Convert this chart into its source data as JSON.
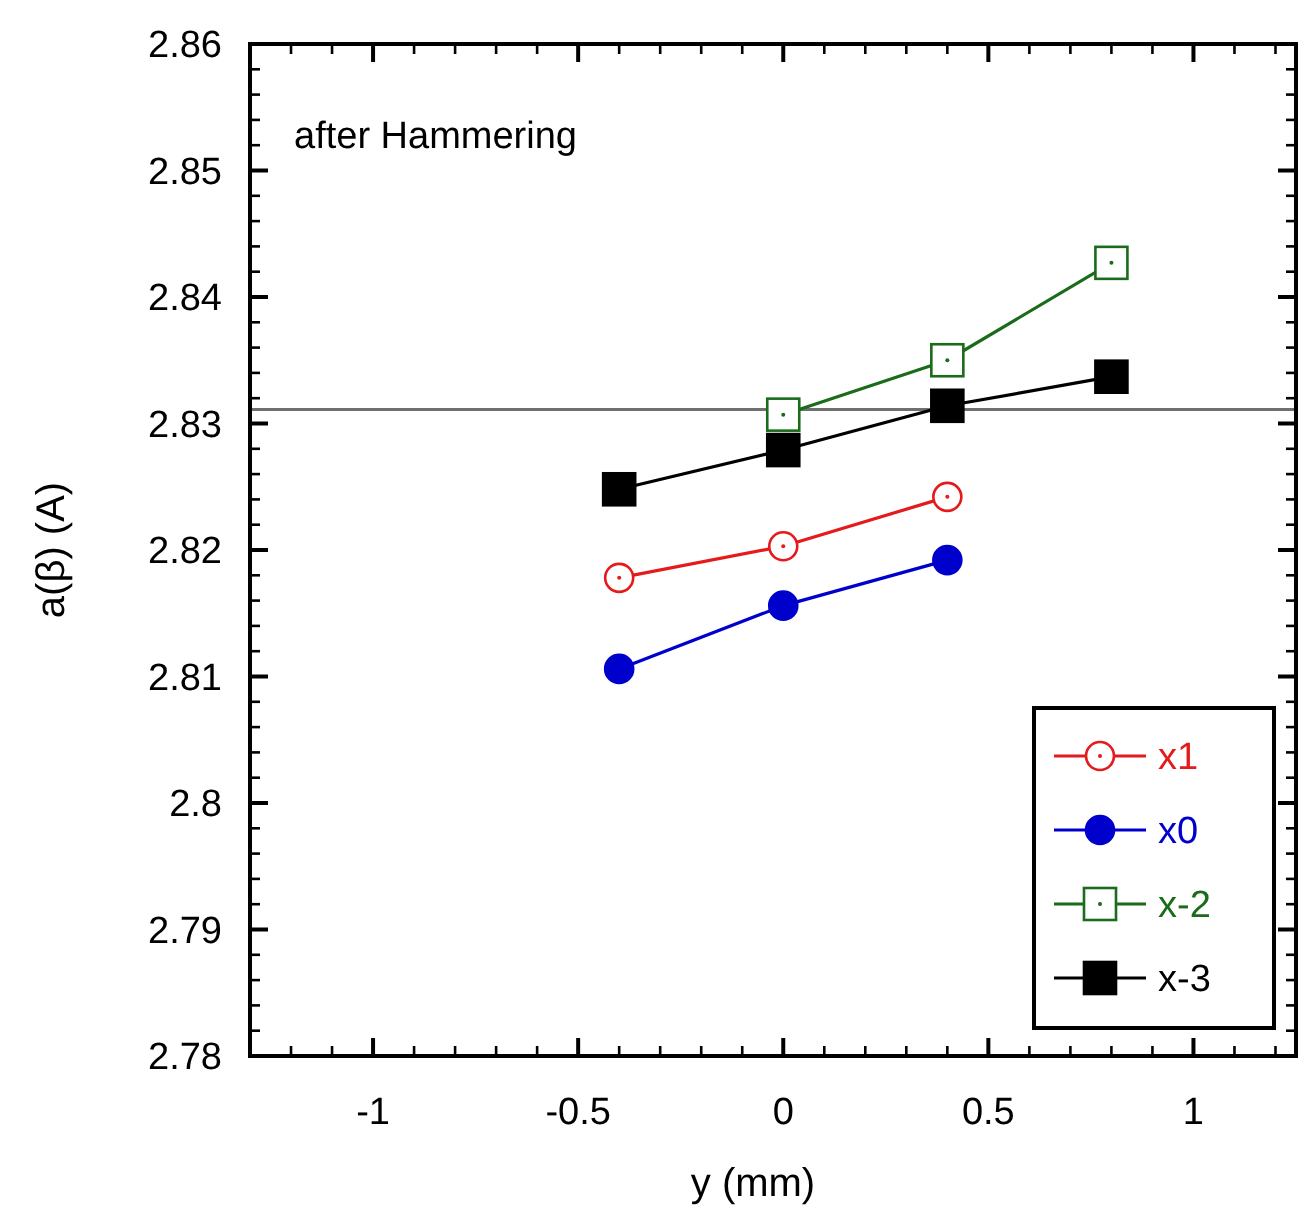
{
  "chart_data": {
    "type": "line",
    "xlabel": "y (mm)",
    "ylabel": "a(β) (A)",
    "annotations": [
      "after Hammering"
    ],
    "xlim": [
      -1.3,
      1.25
    ],
    "ylim": [
      2.78,
      2.86
    ],
    "xticks": [
      {
        "value": -1.2,
        "label": null
      },
      {
        "value": -1.1,
        "label": null
      },
      -1,
      {
        "value": -0.9,
        "label": null
      },
      {
        "value": -0.8,
        "label": null
      },
      {
        "value": -0.7,
        "label": null
      },
      {
        "value": -0.6,
        "label": null
      },
      -0.5,
      {
        "value": -0.4,
        "label": null
      },
      {
        "value": -0.3,
        "label": null
      },
      {
        "value": -0.2,
        "label": null
      },
      {
        "value": -0.1,
        "label": null
      },
      0,
      {
        "value": 0.1,
        "label": null
      },
      {
        "value": 0.2,
        "label": null
      },
      {
        "value": 0.3,
        "label": null
      },
      {
        "value": 0.4,
        "label": null
      },
      0.5,
      {
        "value": 0.6,
        "label": null
      },
      {
        "value": 0.7,
        "label": null
      },
      {
        "value": 0.8,
        "label": null
      },
      {
        "value": 0.9,
        "label": null
      },
      1,
      {
        "value": 1.1,
        "label": null
      },
      {
        "value": 1.2,
        "label": null
      }
    ],
    "yticks": [
      2.78,
      {
        "value": 2.782,
        "label": null
      },
      {
        "value": 2.784,
        "label": null
      },
      {
        "value": 2.786,
        "label": null
      },
      {
        "value": 2.788,
        "label": null
      },
      2.79,
      {
        "value": 2.792,
        "label": null
      },
      {
        "value": 2.794,
        "label": null
      },
      {
        "value": 2.796,
        "label": null
      },
      {
        "value": 2.798,
        "label": null
      },
      {
        "value": 2.8,
        "label": "2.8"
      },
      {
        "value": 2.802,
        "label": null
      },
      {
        "value": 2.804,
        "label": null
      },
      {
        "value": 2.806,
        "label": null
      },
      {
        "value": 2.808,
        "label": null
      },
      2.81,
      {
        "value": 2.812,
        "label": null
      },
      {
        "value": 2.814,
        "label": null
      },
      {
        "value": 2.816,
        "label": null
      },
      {
        "value": 2.818,
        "label": null
      },
      2.82,
      {
        "value": 2.822,
        "label": null
      },
      {
        "value": 2.824,
        "label": null
      },
      {
        "value": 2.826,
        "label": null
      },
      {
        "value": 2.828,
        "label": null
      },
      2.83,
      {
        "value": 2.832,
        "label": null
      },
      {
        "value": 2.834,
        "label": null
      },
      {
        "value": 2.836,
        "label": null
      },
      {
        "value": 2.838,
        "label": null
      },
      2.84,
      {
        "value": 2.842,
        "label": null
      },
      {
        "value": 2.844,
        "label": null
      },
      {
        "value": 2.846,
        "label": null
      },
      {
        "value": 2.848,
        "label": null
      },
      2.85,
      {
        "value": 2.852,
        "label": null
      },
      {
        "value": 2.854,
        "label": null
      },
      {
        "value": 2.856,
        "label": null
      },
      {
        "value": 2.858,
        "label": null
      },
      2.86
    ],
    "grid": false,
    "legend": "bottom right",
    "line_style": "solid",
    "ref_lines": [
      {
        "axis": "y",
        "value": 2.8311,
        "color": "#707070"
      }
    ],
    "series": [
      {
        "name": "x1",
        "color": "#e41a1c",
        "marker": "circle",
        "x": [
          -0.4,
          0,
          0.4
        ],
        "values": [
          2.8178,
          2.8203,
          2.8242
        ]
      },
      {
        "name": "x0",
        "color": "#0000cc",
        "marker": "circle",
        "x": [
          -0.4,
          0,
          0.4
        ],
        "values": [
          2.8106,
          2.8156,
          2.8192
        ]
      },
      {
        "name": "x-2",
        "color": "#1a6b1a",
        "marker": "square",
        "x": [
          0,
          0.4,
          0.8
        ],
        "values": [
          2.8307,
          2.835,
          2.8427
        ]
      },
      {
        "name": "x-3",
        "color": "#000000",
        "marker": "square",
        "x": [
          -0.4,
          0,
          0.4,
          0.8
        ],
        "values": [
          2.8248,
          2.8279,
          2.8314,
          2.8337
        ]
      }
    ]
  }
}
